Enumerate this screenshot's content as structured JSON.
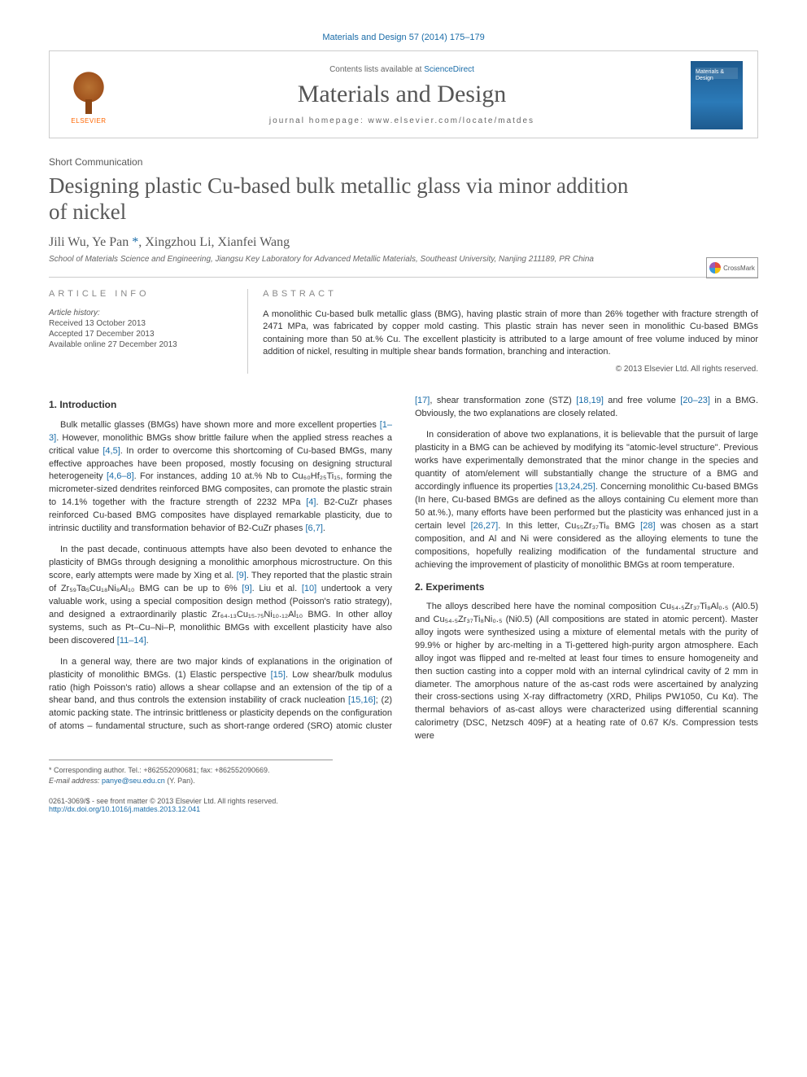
{
  "citation": {
    "journal": "Materials and Design",
    "volume_pages": "57 (2014) 175–179"
  },
  "header": {
    "contents_prefix": "Contents lists available at ",
    "contents_link": "ScienceDirect",
    "journal_name": "Materials and Design",
    "homepage_prefix": "journal homepage: ",
    "homepage_url": "www.elsevier.com/locate/matdes",
    "publisher_label": "ELSEVIER",
    "cover_text": "Materials\n& Design"
  },
  "crossmark_label": "CrossMark",
  "article": {
    "type": "Short Communication",
    "title": "Designing plastic Cu-based bulk metallic glass via minor addition of nickel",
    "authors_html": "Jili Wu, Ye Pan *, Xingzhou Li, Xianfei Wang",
    "affiliation": "School of Materials Science and Engineering, Jiangsu Key Laboratory for Advanced Metallic Materials, Southeast University, Nanjing 211189, PR China"
  },
  "info": {
    "heading_left": "article info",
    "history_label": "Article history:",
    "history": [
      "Received 13 October 2013",
      "Accepted 17 December 2013",
      "Available online 27 December 2013"
    ],
    "heading_right": "abstract",
    "abstract": "A monolithic Cu-based bulk metallic glass (BMG), having plastic strain of more than 26% together with fracture strength of 2471 MPa, was fabricated by copper mold casting. This plastic strain has never seen in monolithic Cu-based BMGs containing more than 50 at.% Cu. The excellent plasticity is attributed to a large amount of free volume induced by minor addition of nickel, resulting in multiple shear bands formation, branching and interaction.",
    "copyright": "© 2013 Elsevier Ltd. All rights reserved."
  },
  "sections": {
    "s1_title": "1. Introduction",
    "s1_p1": "Bulk metallic glasses (BMGs) have shown more and more excellent properties [1–3]. However, monolithic BMGs show brittle failure when the applied stress reaches a critical value [4,5]. In order to overcome this shortcoming of Cu-based BMGs, many effective approaches have been proposed, mostly focusing on designing structural heterogeneity [4,6–8]. For instances, adding 10 at.% Nb to Cu₆₀Hf₂₅Ti₁₅, forming the micrometer-sized dendrites reinforced BMG composites, can promote the plastic strain to 14.1% together with the fracture strength of 2232 MPa [4]. B2-CuZr phases reinforced Cu-based BMG composites have displayed remarkable plasticity, due to intrinsic ductility and transformation behavior of B2-CuZr phases [6,7].",
    "s1_p2": "In the past decade, continuous attempts have also been devoted to enhance the plasticity of BMGs through designing a monolithic amorphous microstructure. On this score, early attempts were made by Xing et al. [9]. They reported that the plastic strain of Zr₅₉Ta₅Cu₁₈Ni₈Al₁₀ BMG can be up to 6% [9]. Liu et al. [10] undertook a very valuable work, using a special composition design method (Poisson's ratio strategy), and designed a extraordinarily plastic Zr₆₄.₁₃Cu₁₅.₇₅Ni₁₀.₁₂Al₁₀ BMG. In other alloy systems, such as Pt–Cu–Ni–P, monolithic BMGs with excellent plasticity have also been discovered [11–14].",
    "s1_p3": "In a general way, there are two major kinds of explanations in the origination of plasticity of monolithic BMGs. (1) Elastic perspective [15]. Low shear/bulk modulus ratio (high Poisson's ratio) allows a shear collapse and an extension of the tip of a shear band, and thus controls the extension instability of crack nucleation [15,16]; (2) atomic packing state. The intrinsic brittleness or plasticity depends on the configuration of atoms – fundamental structure, such as short-range ordered (SRO) atomic cluster [17], shear transformation zone (STZ) [18,19] and free volume [20–23] in a BMG. Obviously, the two explanations are closely related.",
    "s1_p4": "In consideration of above two explanations, it is believable that the pursuit of large plasticity in a BMG can be achieved by modifying its \"atomic-level structure\". Previous works have experimentally demonstrated that the minor change in the species and quantity of atom/element will substantially change the structure of a BMG and accordingly influence its properties [13,24,25]. Concerning monolithic Cu-based BMGs (In here, Cu-based BMGs are defined as the alloys containing Cu element more than 50 at.%.), many efforts have been performed but the plasticity was enhanced just in a certain level [26,27]. In this letter, Cu₅₅Zr₃₇Ti₈ BMG [28] was chosen as a start composition, and Al and Ni were considered as the alloying elements to tune the compositions, hopefully realizing modification of the fundamental structure and achieving the improvement of plasticity of monolithic BMGs at room temperature.",
    "s2_title": "2. Experiments",
    "s2_p1": "The alloys described here have the nominal composition Cu₅₄.₅Zr₃₇Ti₈Al₀.₅ (Al0.5) and Cu₅₄.₅Zr₃₇Ti₈Ni₀.₅ (Ni0.5) (All compositions are stated in atomic percent). Master alloy ingots were synthesized using a mixture of elemental metals with the purity of 99.9% or higher by arc-melting in a Ti-gettered high-purity argon atmosphere. Each alloy ingot was flipped and re-melted at least four times to ensure homogeneity and then suction casting into a copper mold with an internal cylindrical cavity of 2 mm in diameter. The amorphous nature of the as-cast rods were ascertained by analyzing their cross-sections using X-ray diffractometry (XRD, Philips PW1050, Cu Kα). The thermal behaviors of as-cast alloys were characterized using differential scanning calorimetry (DSC, Netzsch 409F) at a heating rate of 0.67 K/s. Compression tests were"
  },
  "footnote": {
    "corr_label": "* Corresponding author. Tel.: +862552090681; fax: +862552090669.",
    "email_label": "E-mail address:",
    "email": "panye@seu.edu.cn",
    "email_author": "(Y. Pan)."
  },
  "bottom": {
    "issn_line": "0261-3069/$ - see front matter © 2013 Elsevier Ltd. All rights reserved.",
    "doi_url": "http://dx.doi.org/10.1016/j.matdes.2013.12.041"
  },
  "colors": {
    "link": "#1a6ca8",
    "text": "#333333",
    "muted": "#585858",
    "border": "#cccccc"
  },
  "typography": {
    "body_fontsize_pt": 8,
    "title_fontsize_pt": 20,
    "journal_name_fontsize_pt": 22,
    "font_family_body": "Arial, Helvetica, sans-serif",
    "font_family_serif": "Times New Roman, serif"
  }
}
